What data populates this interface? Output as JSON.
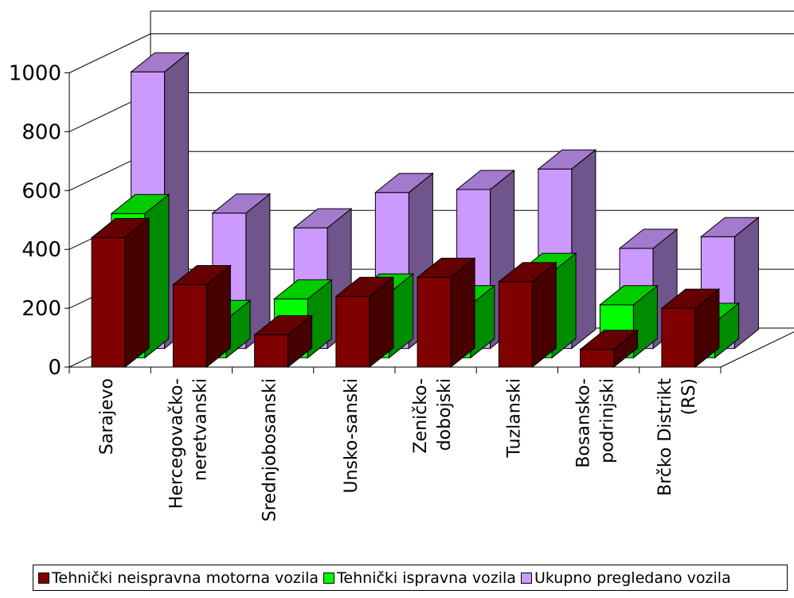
{
  "chart_data": {
    "type": "bar",
    "categories": [
      [
        "Sarajevo"
      ],
      [
        "Hercegovačko-",
        "neretvanski"
      ],
      [
        "Srednjobosanski"
      ],
      [
        "Unsko-sanski"
      ],
      [
        "Zeničko-",
        "dobojski"
      ],
      [
        "Tuzlanski"
      ],
      [
        "Bosansko-",
        "podrinjski"
      ],
      [
        "Brčko Distrikt",
        "(RS)"
      ]
    ],
    "series": [
      {
        "name": "Tehnički neispravna motorna vozila",
        "color": "#800000",
        "values": [
          440,
          280,
          110,
          240,
          305,
          290,
          60,
          200
        ]
      },
      {
        "name": "Tehnički ispravna vozila",
        "color": "#00FF00",
        "values": [
          490,
          130,
          200,
          220,
          180,
          290,
          180,
          120
        ]
      },
      {
        "name": "Ukupno pregledano vozila",
        "color": "#CC99FF",
        "values": [
          940,
          460,
          410,
          530,
          540,
          610,
          340,
          380
        ]
      }
    ],
    "yticks": [
      "0",
      "200",
      "400",
      "600",
      "800",
      "1000"
    ],
    "ylim": [
      0,
      1000
    ],
    "grid": true,
    "legend_position": "bottom"
  }
}
